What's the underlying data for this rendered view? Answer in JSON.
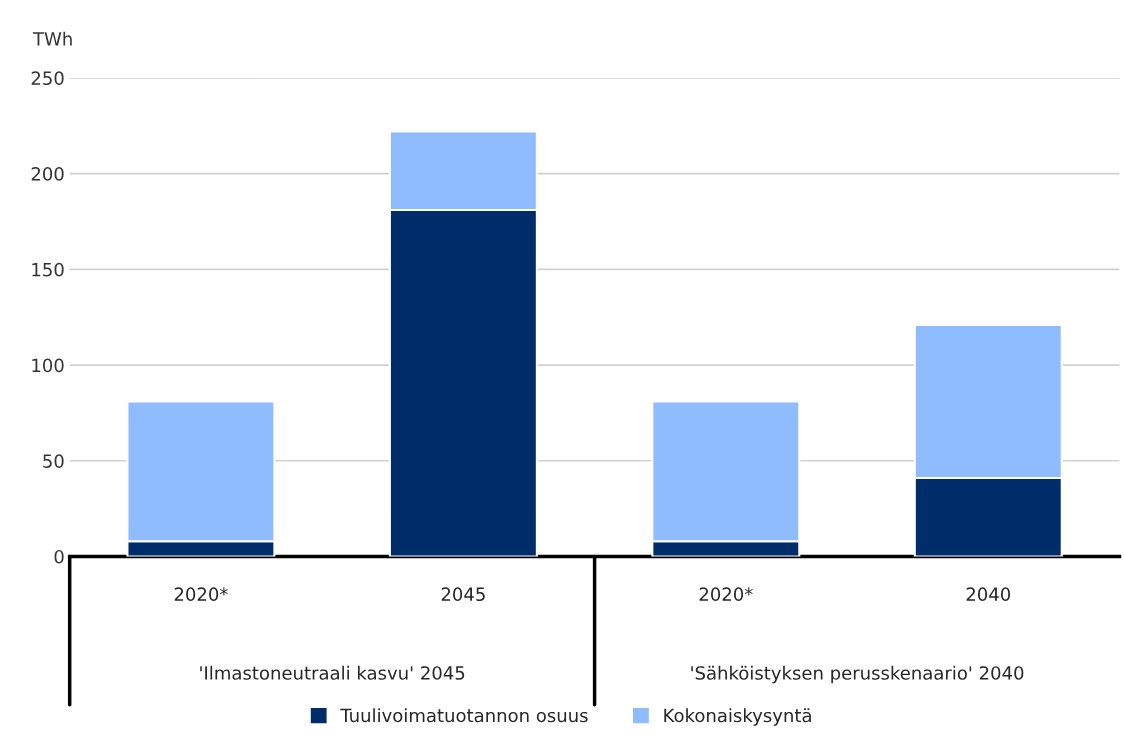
{
  "chart_data": {
    "type": "bar",
    "stacked": true,
    "ylabel": "TWh",
    "categories": [
      "2020*",
      "2045",
      "2020*",
      "2040"
    ],
    "series": [
      {
        "name": "Tuulivoimatuotannon osuus",
        "color": "#002d6a",
        "values": [
          8,
          181,
          8,
          41
        ]
      },
      {
        "name": "Kokonaiskysyntä",
        "color": "#8fbcff",
        "values": [
          73,
          41,
          73,
          80
        ]
      }
    ],
    "annotations": [
      "'Ilmastoneutraali kasvu' 2045",
      "'Sähköistyksen perusskenaario' 2040"
    ],
    "ylim": [
      0,
      250
    ],
    "yticks": [
      0,
      50,
      100,
      150,
      200,
      250
    ],
    "grid": "y",
    "legend": "bottom"
  }
}
